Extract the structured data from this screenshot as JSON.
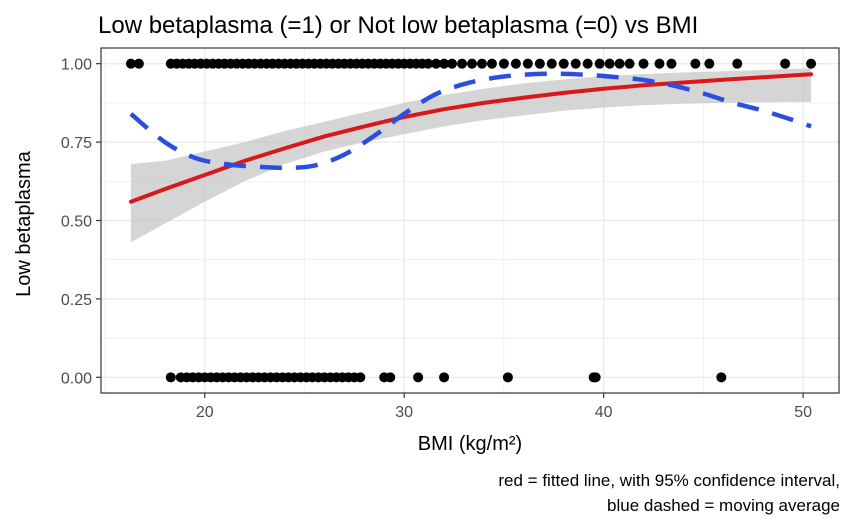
{
  "chart_data": {
    "type": "scatter",
    "title": "Low betaplasma (=1) or Not low betaplasma (=0) vs BMI",
    "xlabel": "BMI (kg/m²)",
    "ylabel": "Low betaplasma",
    "xlim": [
      14.8,
      51.8
    ],
    "ylim": [
      -0.05,
      1.05
    ],
    "x_ticks": [
      20,
      30,
      40,
      50
    ],
    "x_tick_labels": [
      "20",
      "30",
      "40",
      "50"
    ],
    "y_ticks": [
      0,
      0.25,
      0.5,
      0.75,
      1
    ],
    "y_tick_labels": [
      "0.00",
      "0.25",
      "0.50",
      "0.75",
      "1.00"
    ],
    "grid": true,
    "caption": [
      "red = fitted line, with 95% confidence interval,",
      "blue dashed = moving average"
    ],
    "colors": {
      "points": "#000000",
      "fitted_line": "#d7191c",
      "confidence_band": "#bebebe",
      "moving_average": "#2a4fe0",
      "grid_major": "#ebebeb",
      "panel_border": "#333333"
    },
    "series": [
      {
        "type": "scatter",
        "x_low1": [
          16.3,
          16.7,
          18.3,
          18.6,
          18.9,
          19.2,
          19.5,
          19.8,
          20.1,
          20.4,
          20.7,
          21.0,
          21.3,
          21.6,
          21.9,
          22.2,
          22.5,
          22.8,
          23.1,
          23.4,
          23.7,
          24.0,
          24.3,
          24.6,
          24.9,
          25.2,
          25.5,
          25.8,
          26.1,
          26.4,
          26.7,
          27.0,
          27.3,
          27.6,
          27.9,
          28.2,
          28.5,
          28.8,
          29.1,
          29.4,
          29.7,
          30.0,
          30.3,
          30.6,
          30.9,
          31.2,
          31.6,
          32.0,
          32.4,
          32.9,
          33.4,
          33.9,
          34.4,
          35.0,
          35.6,
          36.2,
          36.8,
          37.4,
          38.0,
          38.6,
          39.2,
          39.8,
          40.3,
          40.8,
          41.3,
          42.0,
          42.8,
          43.4,
          44.6,
          45.3,
          46.7,
          49.1,
          50.4
        ],
        "x_low0": [
          18.3,
          18.8,
          19.1,
          19.4,
          19.7,
          20.0,
          20.3,
          20.6,
          20.9,
          21.2,
          21.5,
          21.8,
          22.1,
          22.4,
          22.7,
          23.0,
          23.3,
          23.6,
          23.9,
          24.2,
          24.5,
          24.8,
          25.1,
          25.4,
          25.7,
          26.0,
          26.3,
          26.6,
          26.9,
          27.2,
          27.5,
          27.8,
          29.0,
          29.3,
          30.7,
          32.0,
          35.2,
          39.5,
          39.6,
          45.9
        ]
      }
    ],
    "fit": {
      "x": [
        16.3,
        18,
        20,
        22,
        24,
        26,
        28,
        30,
        32,
        34,
        36,
        38,
        40,
        42,
        44,
        46,
        48,
        50.4
      ],
      "y": [
        0.56,
        0.6,
        0.645,
        0.69,
        0.73,
        0.768,
        0.8,
        0.83,
        0.855,
        0.875,
        0.892,
        0.907,
        0.92,
        0.931,
        0.94,
        0.949,
        0.957,
        0.966
      ],
      "lower": [
        0.43,
        0.49,
        0.56,
        0.625,
        0.68,
        0.72,
        0.75,
        0.775,
        0.8,
        0.82,
        0.835,
        0.85,
        0.86,
        0.868,
        0.872,
        0.875,
        0.877,
        0.878
      ],
      "upper": [
        0.68,
        0.69,
        0.72,
        0.75,
        0.785,
        0.815,
        0.845,
        0.875,
        0.9,
        0.92,
        0.937,
        0.95,
        0.96,
        0.967,
        0.972,
        0.976,
        0.98,
        0.985
      ]
    },
    "moving_average": {
      "x": [
        16.3,
        18,
        19.5,
        21,
        22.5,
        24,
        25.5,
        27,
        28.5,
        30,
        31.5,
        33,
        34.5,
        36,
        37.5,
        39,
        40.5,
        42,
        43.5,
        45,
        46.5,
        48,
        49.5,
        50.4
      ],
      "y": [
        0.84,
        0.75,
        0.7,
        0.68,
        0.672,
        0.668,
        0.675,
        0.71,
        0.77,
        0.84,
        0.9,
        0.935,
        0.955,
        0.965,
        0.968,
        0.965,
        0.958,
        0.948,
        0.93,
        0.905,
        0.875,
        0.85,
        0.82,
        0.8
      ]
    }
  }
}
